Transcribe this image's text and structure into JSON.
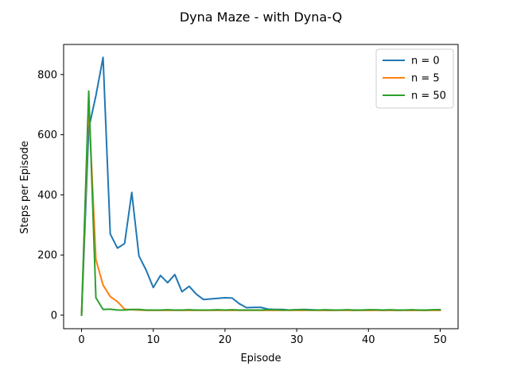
{
  "chart_data": {
    "type": "line",
    "title": "Dyna Maze - with Dyna-Q",
    "xlabel": "Episode",
    "ylabel": "Steps per Episode",
    "xlim": [
      -2.5,
      52.5
    ],
    "ylim": [
      -45,
      900
    ],
    "xticks": [
      0,
      10,
      20,
      30,
      40,
      50
    ],
    "yticks": [
      0,
      200,
      400,
      600,
      800
    ],
    "grid": false,
    "legend_position": "upper right",
    "x": [
      0,
      1,
      2,
      3,
      4,
      5,
      6,
      7,
      8,
      9,
      10,
      11,
      12,
      13,
      14,
      15,
      16,
      17,
      18,
      19,
      20,
      21,
      22,
      23,
      24,
      25,
      26,
      27,
      28,
      29,
      30,
      31,
      32,
      33,
      34,
      35,
      36,
      37,
      38,
      39,
      40,
      41,
      42,
      43,
      44,
      45,
      46,
      47,
      48,
      49,
      50
    ],
    "series": [
      {
        "name": "n = 0",
        "color": "#1f77b4",
        "values": [
          0,
          620,
          730,
          857,
          270,
          223,
          238,
          408,
          197,
          150,
          92,
          132,
          108,
          135,
          78,
          96,
          70,
          52,
          54,
          56,
          58,
          57,
          38,
          25,
          26,
          26,
          20,
          19,
          19,
          17,
          18,
          19,
          18,
          17,
          16,
          16,
          17,
          17,
          16,
          17,
          16,
          17,
          16,
          17,
          16,
          17,
          16,
          17,
          16,
          17,
          18
        ]
      },
      {
        "name": "n = 5",
        "color": "#ff7f0e",
        "values": [
          0,
          705,
          185,
          100,
          62,
          45,
          20,
          18,
          17,
          16,
          16,
          16,
          16,
          16,
          16,
          16,
          16,
          16,
          16,
          16,
          16,
          16,
          16,
          16,
          16,
          16,
          16,
          16,
          16,
          16,
          16,
          16,
          16,
          16,
          16,
          16,
          16,
          16,
          16,
          16,
          16,
          16,
          16,
          16,
          16,
          16,
          16,
          16,
          16,
          16,
          16
        ]
      },
      {
        "name": "n = 50",
        "color": "#2ca02c",
        "values": [
          0,
          745,
          58,
          19,
          20,
          17,
          17,
          19,
          19,
          17,
          17,
          17,
          18,
          17,
          17,
          18,
          17,
          17,
          17,
          18,
          17,
          18,
          17,
          17,
          17,
          17,
          18,
          18,
          17,
          17,
          18,
          18,
          17,
          17,
          18,
          17,
          17,
          18,
          17,
          17,
          18,
          18,
          17,
          18,
          17,
          17,
          18,
          17,
          17,
          18,
          18
        ]
      }
    ]
  }
}
